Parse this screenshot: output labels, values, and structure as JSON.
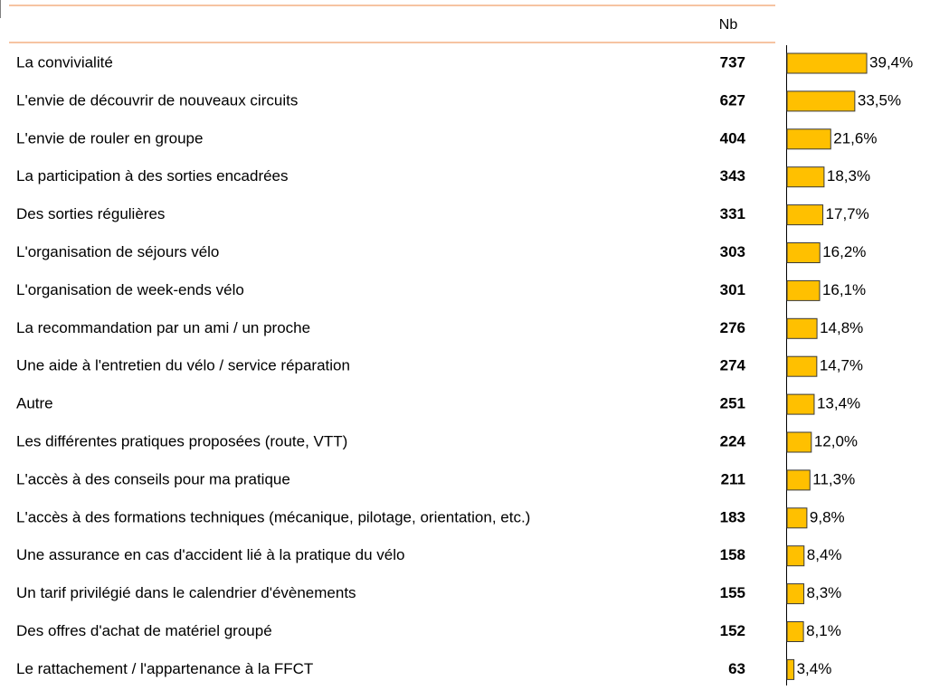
{
  "chart_data": {
    "type": "bar",
    "orientation": "horizontal",
    "count_header": "Nb",
    "color": "#ffc000",
    "categories": [
      "La convivialité",
      "L'envie de découvrir de nouveaux circuits",
      "L'envie de rouler en groupe",
      "La participation à des sorties encadrées",
      "Des sorties régulières",
      "L'organisation de séjours vélo",
      "L'organisation de week-ends vélo",
      "La recommandation par un ami / un proche",
      "Une aide à l'entretien du vélo / service réparation",
      "Autre",
      "Les différentes pratiques proposées (route, VTT)",
      "L'accès à  des conseils pour ma pratique",
      "L'accès à des formations techniques (mécanique, pilotage, orientation, etc.)",
      "Une assurance en cas d'accident lié à la pratique du vélo",
      "Un tarif privilégié dans le calendrier d'évènements",
      "Des offres d'achat de matériel groupé",
      "Le rattachement / l'appartenance à la FFCT"
    ],
    "counts": [
      737,
      627,
      404,
      343,
      331,
      303,
      301,
      276,
      274,
      251,
      224,
      211,
      183,
      158,
      155,
      152,
      63
    ],
    "values": [
      39.4,
      33.5,
      21.6,
      18.3,
      17.7,
      16.2,
      16.1,
      14.8,
      14.7,
      13.4,
      12.0,
      11.3,
      9.8,
      8.4,
      8.3,
      8.1,
      3.4
    ],
    "value_labels": [
      "39,4%",
      "33,5%",
      "21,6%",
      "18,3%",
      "17,7%",
      "16,2%",
      "16,1%",
      "14,8%",
      "14,7%",
      "13,4%",
      "12,0%",
      "11,3%",
      "9,8%",
      "8,4%",
      "8,3%",
      "8,1%",
      "3,4%"
    ]
  }
}
